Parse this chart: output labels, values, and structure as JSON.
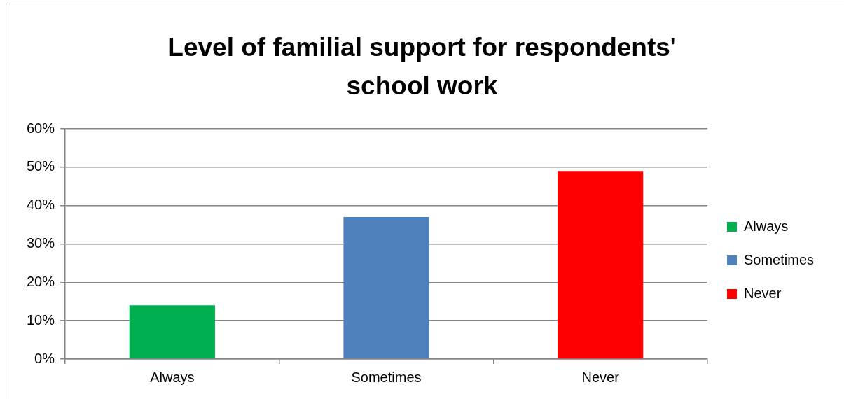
{
  "chart_data": {
    "type": "bar",
    "title": "Level of familial support for respondents' school work",
    "categories": [
      "Always",
      "Sometimes",
      "Never"
    ],
    "series": [
      {
        "name": "Always",
        "color": "#00b050",
        "values": [
          14,
          null,
          null
        ]
      },
      {
        "name": "Sometimes",
        "color": "#4f81bd",
        "values": [
          null,
          37,
          null
        ]
      },
      {
        "name": "Never",
        "color": "#ff0000",
        "values": [
          null,
          null,
          49
        ]
      }
    ],
    "ylim": [
      0,
      60
    ],
    "yticks": [
      {
        "value": 0,
        "label": "0%"
      },
      {
        "value": 10,
        "label": "10%"
      },
      {
        "value": 20,
        "label": "20%"
      },
      {
        "value": 30,
        "label": "30%"
      },
      {
        "value": 40,
        "label": "40%"
      },
      {
        "value": 50,
        "label": "50%"
      },
      {
        "value": 60,
        "label": "60%"
      }
    ],
    "grid": "y",
    "legend": "right"
  }
}
